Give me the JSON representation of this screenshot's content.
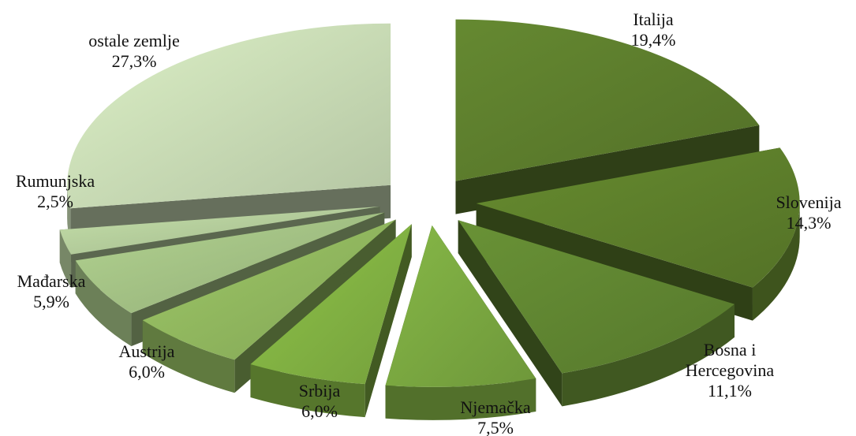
{
  "chart_data": {
    "type": "pie",
    "title": "",
    "slices": [
      {
        "lines": [
          "Italija"
        ],
        "value_label": "19,4%",
        "value": 19.4,
        "color": "#5a7a2c"
      },
      {
        "lines": [
          "Slovenija"
        ],
        "value_label": "14,3%",
        "value": 14.3,
        "color": "#5b7c2a"
      },
      {
        "lines": [
          "Bosna i",
          "Hercegovina"
        ],
        "value_label": "11,1%",
        "value": 11.1,
        "color": "#5e8230"
      },
      {
        "lines": [
          "Njemačka"
        ],
        "value_label": "7,5%",
        "value": 7.5,
        "color": "#78a43f"
      },
      {
        "lines": [
          "Srbija"
        ],
        "value_label": "6,0%",
        "value": 6.0,
        "color": "#7fae41"
      },
      {
        "lines": [
          "Austrija"
        ],
        "value_label": "6,0%",
        "value": 6.0,
        "color": "#8db35c"
      },
      {
        "lines": [
          "Mađarska"
        ],
        "value_label": "5,9%",
        "value": 5.9,
        "color": "#9fbc81"
      },
      {
        "lines": [
          "Rumunjska"
        ],
        "value_label": "2,5%",
        "value": 2.5,
        "color": "#afc797"
      },
      {
        "lines": [
          "ostale zemlje"
        ],
        "value_label": "27,3%",
        "value": 27.3,
        "color": "#c4d6b1"
      }
    ]
  }
}
